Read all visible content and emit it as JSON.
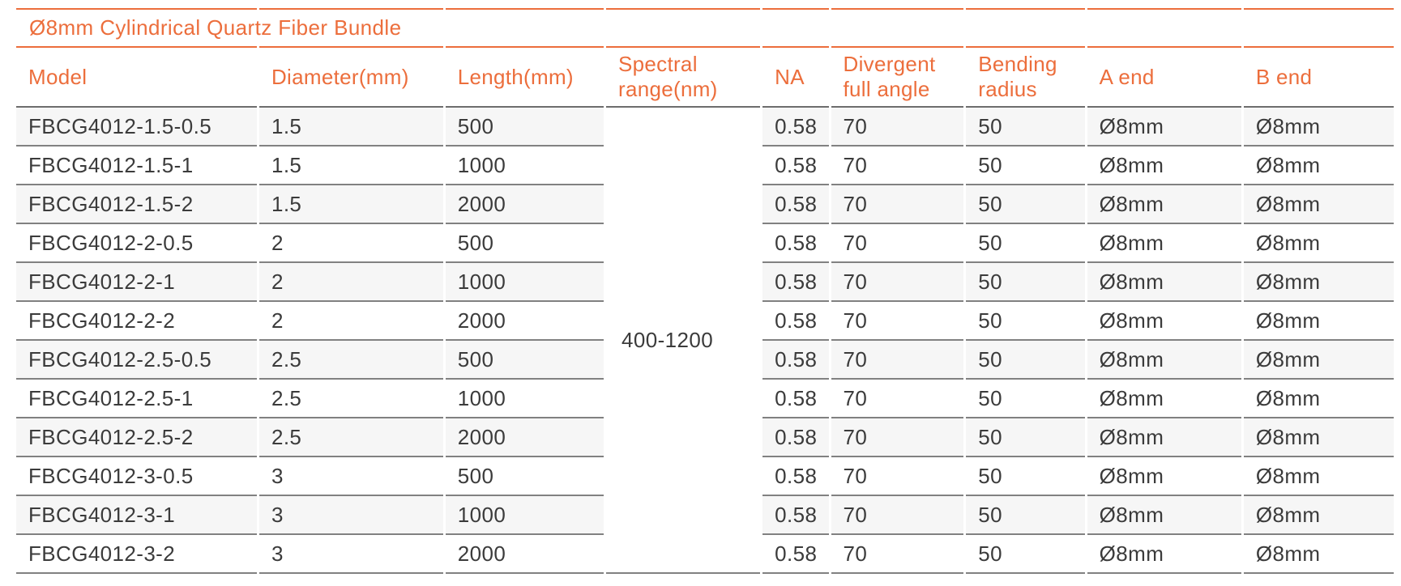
{
  "title": "Ø8mm Cylindrical Quartz Fiber Bundle",
  "table": {
    "columns": [
      {
        "key": "model",
        "label": "Model"
      },
      {
        "key": "diameter",
        "label": "Diameter(mm)"
      },
      {
        "key": "length",
        "label": "Length(mm)"
      },
      {
        "key": "spectral_range",
        "label": "Spectral range(nm)"
      },
      {
        "key": "na",
        "label": "NA"
      },
      {
        "key": "divergent_full_angle",
        "label": "Divergent full angle"
      },
      {
        "key": "bending_radius",
        "label": "Bending radius"
      },
      {
        "key": "a_end",
        "label": "A end"
      },
      {
        "key": "b_end",
        "label": "B end"
      }
    ],
    "merged_spectral_range": "400-1200",
    "rows": [
      {
        "model": "FBCG4012-1.5-0.5",
        "diameter": "1.5",
        "length": "500",
        "na": "0.58",
        "divergent_full_angle": "70",
        "bending_radius": "50",
        "a_end": "Ø8mm",
        "b_end": "Ø8mm"
      },
      {
        "model": "FBCG4012-1.5-1",
        "diameter": "1.5",
        "length": "1000",
        "na": "0.58",
        "divergent_full_angle": "70",
        "bending_radius": "50",
        "a_end": "Ø8mm",
        "b_end": "Ø8mm"
      },
      {
        "model": "FBCG4012-1.5-2",
        "diameter": "1.5",
        "length": "2000",
        "na": "0.58",
        "divergent_full_angle": "70",
        "bending_radius": "50",
        "a_end": "Ø8mm",
        "b_end": "Ø8mm"
      },
      {
        "model": "FBCG4012-2-0.5",
        "diameter": "2",
        "length": "500",
        "na": "0.58",
        "divergent_full_angle": "70",
        "bending_radius": "50",
        "a_end": "Ø8mm",
        "b_end": "Ø8mm"
      },
      {
        "model": "FBCG4012-2-1",
        "diameter": "2",
        "length": "1000",
        "na": "0.58",
        "divergent_full_angle": "70",
        "bending_radius": "50",
        "a_end": "Ø8mm",
        "b_end": "Ø8mm"
      },
      {
        "model": "FBCG4012-2-2",
        "diameter": "2",
        "length": "2000",
        "na": "0.58",
        "divergent_full_angle": "70",
        "bending_radius": "50",
        "a_end": "Ø8mm",
        "b_end": "Ø8mm"
      },
      {
        "model": "FBCG4012-2.5-0.5",
        "diameter": "2.5",
        "length": "500",
        "na": "0.58",
        "divergent_full_angle": "70",
        "bending_radius": "50",
        "a_end": "Ø8mm",
        "b_end": "Ø8mm"
      },
      {
        "model": "FBCG4012-2.5-1",
        "diameter": "2.5",
        "length": "1000",
        "na": "0.58",
        "divergent_full_angle": "70",
        "bending_radius": "50",
        "a_end": "Ø8mm",
        "b_end": "Ø8mm"
      },
      {
        "model": "FBCG4012-2.5-2",
        "diameter": "2.5",
        "length": "2000",
        "na": "0.58",
        "divergent_full_angle": "70",
        "bending_radius": "50",
        "a_end": "Ø8mm",
        "b_end": "Ø8mm"
      },
      {
        "model": "FBCG4012-3-0.5",
        "diameter": "3",
        "length": "500",
        "na": "0.58",
        "divergent_full_angle": "70",
        "bending_radius": "50",
        "a_end": "Ø8mm",
        "b_end": "Ø8mm"
      },
      {
        "model": "FBCG4012-3-1",
        "diameter": "3",
        "length": "1000",
        "na": "0.58",
        "divergent_full_angle": "70",
        "bending_radius": "50",
        "a_end": "Ø8mm",
        "b_end": "Ø8mm"
      },
      {
        "model": "FBCG4012-3-2",
        "diameter": "3",
        "length": "2000",
        "na": "0.58",
        "divergent_full_angle": "70",
        "bending_radius": "50",
        "a_end": "Ø8mm",
        "b_end": "Ø8mm"
      }
    ]
  },
  "colors": {
    "accent": "#EC6E3C",
    "row_stripe": "#F6F6F6",
    "row_border": "#818181",
    "header_border": "#6D6D6D",
    "text": "#3B3B3B"
  }
}
